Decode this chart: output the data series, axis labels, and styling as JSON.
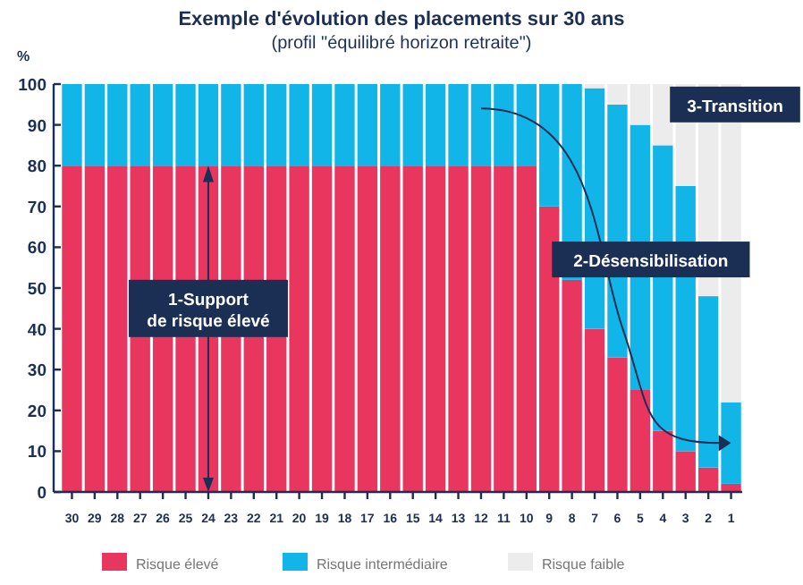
{
  "chart_data": {
    "type": "bar",
    "stacked": true,
    "title": "Exemple d'évolution des placements sur 30 ans",
    "subtitle": "(profil \"équilibré horizon retraite\")",
    "ylabel": "%",
    "categories": [
      "30",
      "29",
      "28",
      "27",
      "26",
      "25",
      "24",
      "23",
      "22",
      "21",
      "20",
      "19",
      "18",
      "17",
      "16",
      "15",
      "14",
      "13",
      "12",
      "11",
      "10",
      "9",
      "8",
      "7",
      "6",
      "5",
      "4",
      "3",
      "2",
      "1"
    ],
    "series": [
      {
        "name": "Risque élevé",
        "color": "#e8365f",
        "values": [
          80,
          80,
          80,
          80,
          80,
          80,
          80,
          80,
          80,
          80,
          80,
          80,
          80,
          80,
          80,
          80,
          80,
          80,
          80,
          80,
          80,
          70,
          52,
          40,
          33,
          25,
          15,
          10,
          6,
          2
        ]
      },
      {
        "name": "Risque intermédiaire",
        "color": "#12b5e8",
        "values": [
          20,
          20,
          20,
          20,
          20,
          20,
          20,
          20,
          20,
          20,
          20,
          20,
          20,
          20,
          20,
          20,
          20,
          20,
          20,
          20,
          20,
          30,
          48,
          59,
          62,
          65,
          70,
          65,
          42,
          20
        ]
      },
      {
        "name": "Risque faible",
        "color": "#ececec",
        "values": [
          0,
          0,
          0,
          0,
          0,
          0,
          0,
          0,
          0,
          0,
          0,
          0,
          0,
          0,
          0,
          0,
          0,
          0,
          0,
          0,
          0,
          0,
          0,
          1,
          5,
          10,
          15,
          25,
          52,
          78
        ]
      }
    ],
    "ylim": [
      0,
      100
    ],
    "yticks": [
      0,
      10,
      20,
      30,
      40,
      50,
      60,
      70,
      80,
      90,
      100
    ],
    "grid": false,
    "legend": "bottom",
    "annotations": [
      "1-Support\nde risque élevé",
      "2-Désensibilisation",
      "3-Transition"
    ]
  }
}
